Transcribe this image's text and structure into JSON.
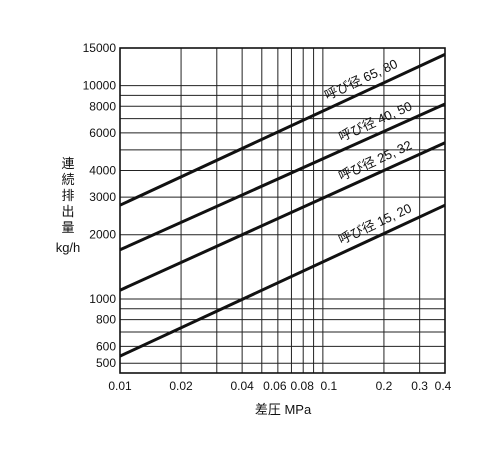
{
  "chart_data": {
    "type": "line",
    "title": "",
    "xlabel": "差圧 MPa",
    "ylabel_lines": [
      "連",
      "続",
      "排",
      "出",
      "量",
      "kg/h"
    ],
    "x_scale": "log",
    "y_scale": "log",
    "xlim": [
      0.01,
      0.4
    ],
    "ylim": [
      450,
      15000
    ],
    "x_tick_labels": [
      {
        "value": 0.01,
        "label": "0.01"
      },
      {
        "value": 0.02,
        "label": "0.02"
      },
      {
        "value": 0.04,
        "label": "0.04"
      },
      {
        "value": 0.06,
        "label": "0.06"
      },
      {
        "value": 0.08,
        "label": "0.08"
      },
      {
        "value": 0.1,
        "label": "0.1"
      },
      {
        "value": 0.2,
        "label": "0.2"
      },
      {
        "value": 0.3,
        "label": "0.3"
      },
      {
        "value": 0.4,
        "label": "0.4"
      }
    ],
    "x_grid_values": [
      0.01,
      0.02,
      0.03,
      0.04,
      0.05,
      0.06,
      0.07,
      0.08,
      0.09,
      0.1,
      0.2,
      0.3,
      0.4
    ],
    "y_tick_labels": [
      {
        "value": 500,
        "label": "500"
      },
      {
        "value": 600,
        "label": "600"
      },
      {
        "value": 800,
        "label": "800"
      },
      {
        "value": 1000,
        "label": "1000"
      },
      {
        "value": 2000,
        "label": "2000"
      },
      {
        "value": 3000,
        "label": "3000"
      },
      {
        "value": 4000,
        "label": "4000"
      },
      {
        "value": 6000,
        "label": "6000"
      },
      {
        "value": 8000,
        "label": "8000"
      },
      {
        "value": 10000,
        "label": "10000"
      },
      {
        "value": 15000,
        "label": "15000"
      }
    ],
    "y_grid_values": [
      500,
      600,
      700,
      800,
      900,
      1000,
      2000,
      3000,
      4000,
      5000,
      6000,
      7000,
      8000,
      9000,
      10000,
      15000
    ],
    "grid": true,
    "series": [
      {
        "name": "呼び径 65, 80",
        "x": [
          0.01,
          0.4
        ],
        "y": [
          2750,
          14000
        ]
      },
      {
        "name": "呼び径 40, 50",
        "x": [
          0.01,
          0.4
        ],
        "y": [
          1700,
          8200
        ]
      },
      {
        "name": "呼び径 25, 32",
        "x": [
          0.01,
          0.4
        ],
        "y": [
          1100,
          5400
        ]
      },
      {
        "name": "呼び径 15, 20",
        "x": [
          0.01,
          0.4
        ],
        "y": [
          540,
          2750
        ]
      }
    ]
  }
}
